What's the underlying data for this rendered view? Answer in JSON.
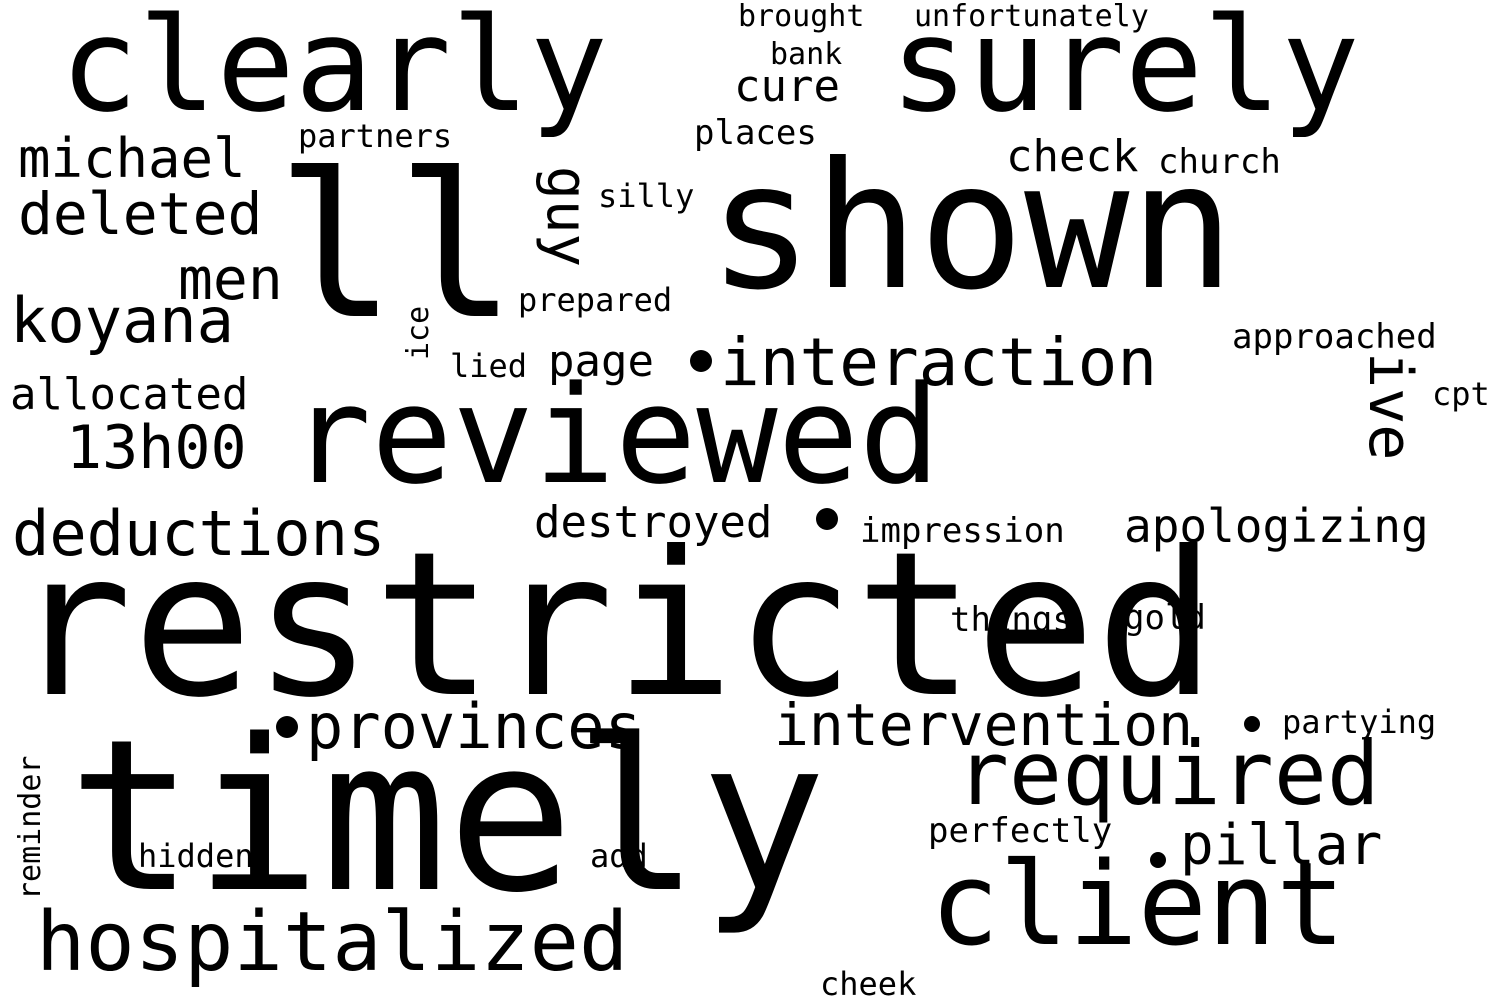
{
  "cloud": {
    "background": "#ffffff",
    "text_color": "#000000",
    "words": [
      "clearly",
      "surely",
      "shown",
      "ll",
      "restricted",
      "timely",
      "reviewed",
      "interaction",
      "provinces",
      "intervention",
      "required",
      "client",
      "hospitalized",
      "deductions",
      "koyana",
      "deleted",
      "men",
      "michael",
      "allocated",
      "13h00",
      "destroyed",
      "apologizing",
      "pillar",
      "guy",
      "ive",
      "check",
      "cure",
      "church",
      "partners",
      "places",
      "silly",
      "prepared",
      "ice",
      "lied",
      "page",
      "approached",
      "cpt",
      "impression",
      "things",
      "gold",
      "partying",
      "perfectly",
      "reminder",
      "hidden",
      "add",
      "cheek",
      "bank",
      "brought",
      "unfortunately"
    ]
  }
}
